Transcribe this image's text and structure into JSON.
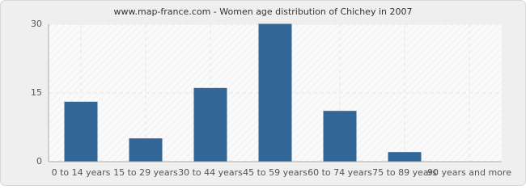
{
  "chart_data": {
    "type": "bar",
    "title": "www.map-france.com - Women age distribution of Chichey in 2007",
    "categories": [
      "0 to 14 years",
      "15 to 29 years",
      "30 to 44 years",
      "45 to 59 years",
      "60 to 74 years",
      "75 to 89 years",
      "90 years and more"
    ],
    "values": [
      13,
      5,
      16,
      30,
      11,
      2,
      0
    ],
    "color": "#336699",
    "ylim": [
      0,
      30
    ],
    "yticks": [
      0,
      15,
      30
    ],
    "grid": true
  }
}
